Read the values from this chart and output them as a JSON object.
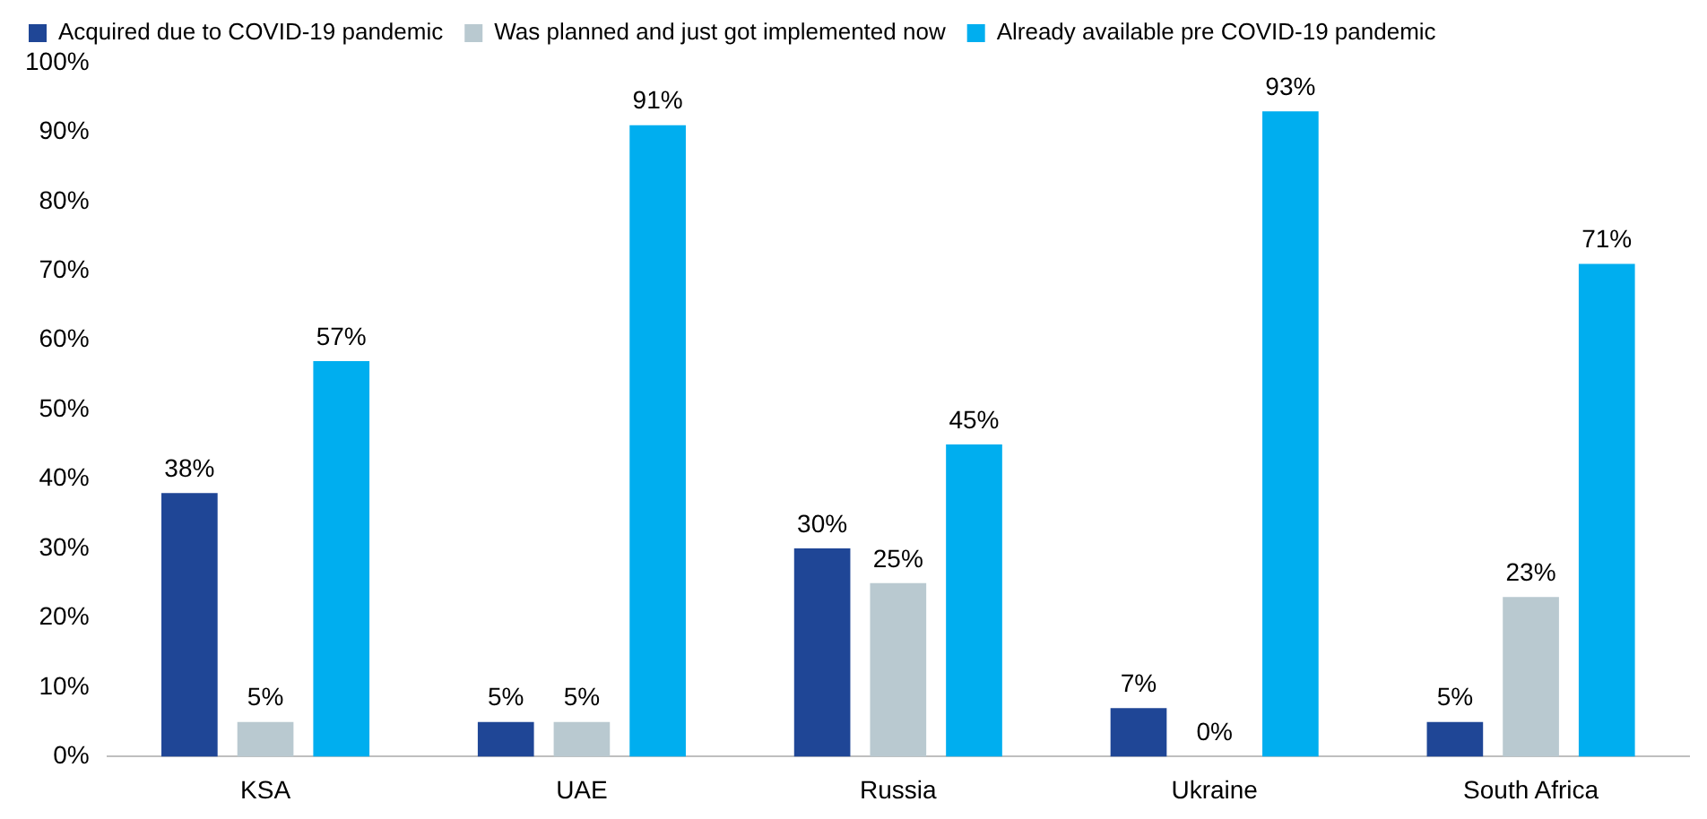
{
  "chart_data": {
    "type": "bar",
    "categories": [
      "KSA",
      "UAE",
      "Russia",
      "Ukraine",
      "South Africa"
    ],
    "series": [
      {
        "name": "Acquired due to COVID-19 pandemic",
        "color": "#1f4696",
        "values": [
          38,
          5,
          30,
          7,
          5
        ],
        "value_labels": [
          "38%",
          "5%",
          "30%",
          "7%",
          "5%"
        ]
      },
      {
        "name": "Was planned and just got implemented now",
        "color": "#b9c9d0",
        "values": [
          5,
          5,
          25,
          0,
          23
        ],
        "value_labels": [
          "5%",
          "5%",
          "25%",
          "0%",
          "23%"
        ]
      },
      {
        "name": "Already available pre COVID-19 pandemic",
        "color": "#00aeef",
        "values": [
          57,
          91,
          45,
          93,
          71
        ],
        "value_labels": [
          "57%",
          "91%",
          "45%",
          "93%",
          "71%"
        ]
      }
    ],
    "ylim": [
      0,
      100
    ],
    "yticks": [
      {
        "value": 0,
        "label": "0%"
      },
      {
        "value": 10,
        "label": "10%"
      },
      {
        "value": 20,
        "label": "20%"
      },
      {
        "value": 30,
        "label": "30%"
      },
      {
        "value": 40,
        "label": "40%"
      },
      {
        "value": 50,
        "label": "50%"
      },
      {
        "value": 60,
        "label": "60%"
      },
      {
        "value": 70,
        "label": "70%"
      },
      {
        "value": 80,
        "label": "80%"
      },
      {
        "value": 90,
        "label": "90%"
      },
      {
        "value": 100,
        "label": "100%"
      }
    ],
    "grid": false,
    "legend": "top left"
  }
}
